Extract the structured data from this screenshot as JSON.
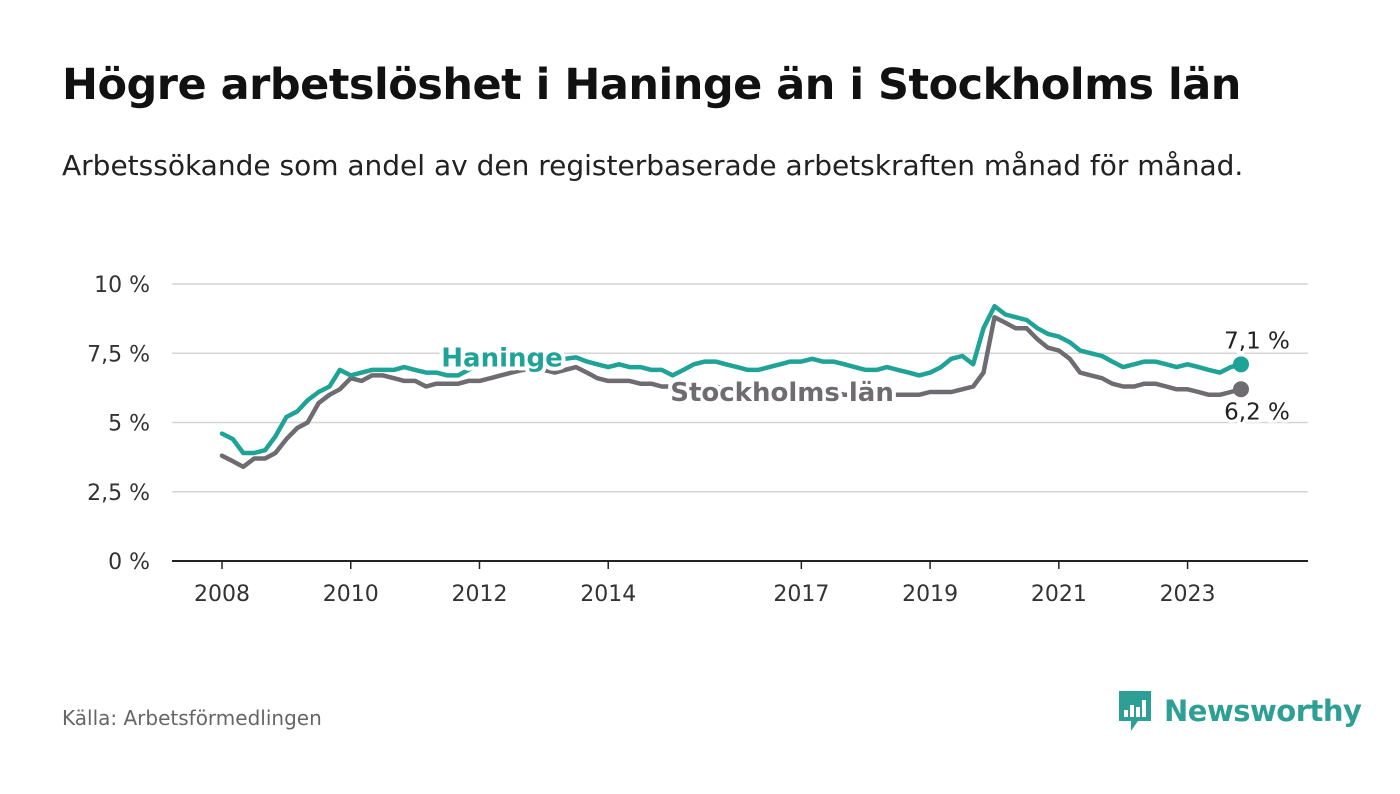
{
  "title": "Högre arbetslöshet i Haninge än i Stockholms län",
  "subtitle": "Arbetssökande som andel av den registerbaserade arbetskraften månad för månad.",
  "source": "Källa: Arbetsförmedlingen",
  "brand": {
    "name": "Newsworthy",
    "color": "#2e9f94",
    "icon": "bar-chart-speech-bubble-icon"
  },
  "chart_data": {
    "type": "line",
    "title": "Högre arbetslöshet i Haninge än i Stockholms län",
    "xlabel": "",
    "ylabel": "",
    "xlim": [
      2008,
      2024.3
    ],
    "ylim": [
      0,
      10
    ],
    "grid": true,
    "y_ticks": [
      {
        "value": 0,
        "label": "0 %"
      },
      {
        "value": 2.5,
        "label": "2,5 %"
      },
      {
        "value": 5,
        "label": "5 %"
      },
      {
        "value": 7.5,
        "label": "7,5 %"
      },
      {
        "value": 10,
        "label": "10 %"
      }
    ],
    "x_ticks": [
      {
        "value": 2008,
        "label": "2008"
      },
      {
        "value": 2010,
        "label": "2010"
      },
      {
        "value": 2012,
        "label": "2012"
      },
      {
        "value": 2014,
        "label": "2014"
      },
      {
        "value": 2017,
        "label": "2017"
      },
      {
        "value": 2019,
        "label": "2019"
      },
      {
        "value": 2021,
        "label": "2021"
      },
      {
        "value": 2023,
        "label": "2023"
      }
    ],
    "series": [
      {
        "name": "Haninge",
        "color": "#1fa397",
        "end_label": "7,1 %",
        "label_at": [
          2012.35,
          7.35
        ],
        "x": [
          2008.0,
          2008.17,
          2008.33,
          2008.5,
          2008.67,
          2008.83,
          2009.0,
          2009.17,
          2009.33,
          2009.5,
          2009.67,
          2009.83,
          2010.0,
          2010.17,
          2010.33,
          2010.5,
          2010.67,
          2010.83,
          2011.0,
          2011.17,
          2011.33,
          2011.5,
          2011.67,
          2011.83,
          2012.0,
          2012.17,
          2012.33,
          2012.5,
          2012.67,
          2012.83,
          2013.0,
          2013.17,
          2013.33,
          2013.5,
          2013.67,
          2013.83,
          2014.0,
          2014.17,
          2014.33,
          2014.5,
          2014.67,
          2014.83,
          2015.0,
          2015.17,
          2015.33,
          2015.5,
          2015.67,
          2015.83,
          2016.0,
          2016.17,
          2016.33,
          2016.5,
          2016.67,
          2016.83,
          2017.0,
          2017.17,
          2017.33,
          2017.5,
          2017.67,
          2017.83,
          2018.0,
          2018.17,
          2018.33,
          2018.5,
          2018.67,
          2018.83,
          2019.0,
          2019.17,
          2019.33,
          2019.5,
          2019.67,
          2019.83,
          2020.0,
          2020.17,
          2020.33,
          2020.5,
          2020.67,
          2020.83,
          2021.0,
          2021.17,
          2021.33,
          2021.5,
          2021.67,
          2021.83,
          2022.0,
          2022.17,
          2022.33,
          2022.5,
          2022.67,
          2022.83,
          2023.0,
          2023.17,
          2023.33,
          2023.5,
          2023.67,
          2023.83
        ],
        "values": [
          4.6,
          4.4,
          3.9,
          3.9,
          4.0,
          4.5,
          5.2,
          5.4,
          5.8,
          6.1,
          6.3,
          6.9,
          6.7,
          6.8,
          6.9,
          6.9,
          6.9,
          7.0,
          6.9,
          6.8,
          6.8,
          6.7,
          6.7,
          6.9,
          7.1,
          7.2,
          7.3,
          7.35,
          7.3,
          7.2,
          7.3,
          7.2,
          7.3,
          7.35,
          7.2,
          7.1,
          7.0,
          7.1,
          7.0,
          7.0,
          6.9,
          6.9,
          6.7,
          6.9,
          7.1,
          7.2,
          7.2,
          7.1,
          7.0,
          6.9,
          6.9,
          7.0,
          7.1,
          7.2,
          7.2,
          7.3,
          7.2,
          7.2,
          7.1,
          7.0,
          6.9,
          6.9,
          7.0,
          6.9,
          6.8,
          6.7,
          6.8,
          7.0,
          7.3,
          7.4,
          7.1,
          8.4,
          9.2,
          8.9,
          8.8,
          8.7,
          8.4,
          8.2,
          8.1,
          7.9,
          7.6,
          7.5,
          7.4,
          7.2,
          7.0,
          7.1,
          7.2,
          7.2,
          7.1,
          7.0,
          7.1,
          7.0,
          6.9,
          6.8,
          7.0,
          7.1
        ]
      },
      {
        "name": "Stockholms län",
        "color": "#6e6c70",
        "end_label": "6,2 %",
        "label_at": [
          2016.7,
          6.1
        ],
        "x": [
          2008.0,
          2008.17,
          2008.33,
          2008.5,
          2008.67,
          2008.83,
          2009.0,
          2009.17,
          2009.33,
          2009.5,
          2009.67,
          2009.83,
          2010.0,
          2010.17,
          2010.33,
          2010.5,
          2010.67,
          2010.83,
          2011.0,
          2011.17,
          2011.33,
          2011.5,
          2011.67,
          2011.83,
          2012.0,
          2012.17,
          2012.33,
          2012.5,
          2012.67,
          2012.83,
          2013.0,
          2013.17,
          2013.33,
          2013.5,
          2013.67,
          2013.83,
          2014.0,
          2014.17,
          2014.33,
          2014.5,
          2014.67,
          2014.83,
          2015.0,
          2015.17,
          2015.33,
          2015.5,
          2015.67,
          2015.83,
          2016.0,
          2016.17,
          2016.33,
          2016.5,
          2016.67,
          2016.83,
          2017.0,
          2017.17,
          2017.33,
          2017.5,
          2017.67,
          2017.83,
          2018.0,
          2018.17,
          2018.33,
          2018.5,
          2018.67,
          2018.83,
          2019.0,
          2019.17,
          2019.33,
          2019.5,
          2019.67,
          2019.83,
          2020.0,
          2020.17,
          2020.33,
          2020.5,
          2020.67,
          2020.83,
          2021.0,
          2021.17,
          2021.33,
          2021.5,
          2021.67,
          2021.83,
          2022.0,
          2022.17,
          2022.33,
          2022.5,
          2022.67,
          2022.83,
          2023.0,
          2023.17,
          2023.33,
          2023.5,
          2023.67,
          2023.83
        ],
        "values": [
          3.8,
          3.6,
          3.4,
          3.7,
          3.7,
          3.9,
          4.4,
          4.8,
          5.0,
          5.7,
          6.0,
          6.2,
          6.6,
          6.5,
          6.7,
          6.7,
          6.6,
          6.5,
          6.5,
          6.3,
          6.4,
          6.4,
          6.4,
          6.5,
          6.5,
          6.6,
          6.7,
          6.8,
          6.9,
          6.9,
          6.9,
          6.8,
          6.9,
          7.0,
          6.8,
          6.6,
          6.5,
          6.5,
          6.5,
          6.4,
          6.4,
          6.3,
          6.3,
          6.4,
          6.4,
          6.3,
          6.3,
          6.2,
          6.1,
          6.1,
          6.1,
          6.1,
          6.1,
          6.1,
          6.1,
          6.1,
          6.1,
          6.1,
          6.0,
          6.0,
          6.0,
          6.0,
          6.0,
          6.0,
          6.0,
          6.0,
          6.1,
          6.1,
          6.1,
          6.2,
          6.3,
          6.8,
          8.8,
          8.6,
          8.4,
          8.4,
          8.0,
          7.7,
          7.6,
          7.3,
          6.8,
          6.7,
          6.6,
          6.4,
          6.3,
          6.3,
          6.4,
          6.4,
          6.3,
          6.2,
          6.2,
          6.1,
          6.0,
          6.0,
          6.1,
          6.2
        ]
      }
    ]
  }
}
